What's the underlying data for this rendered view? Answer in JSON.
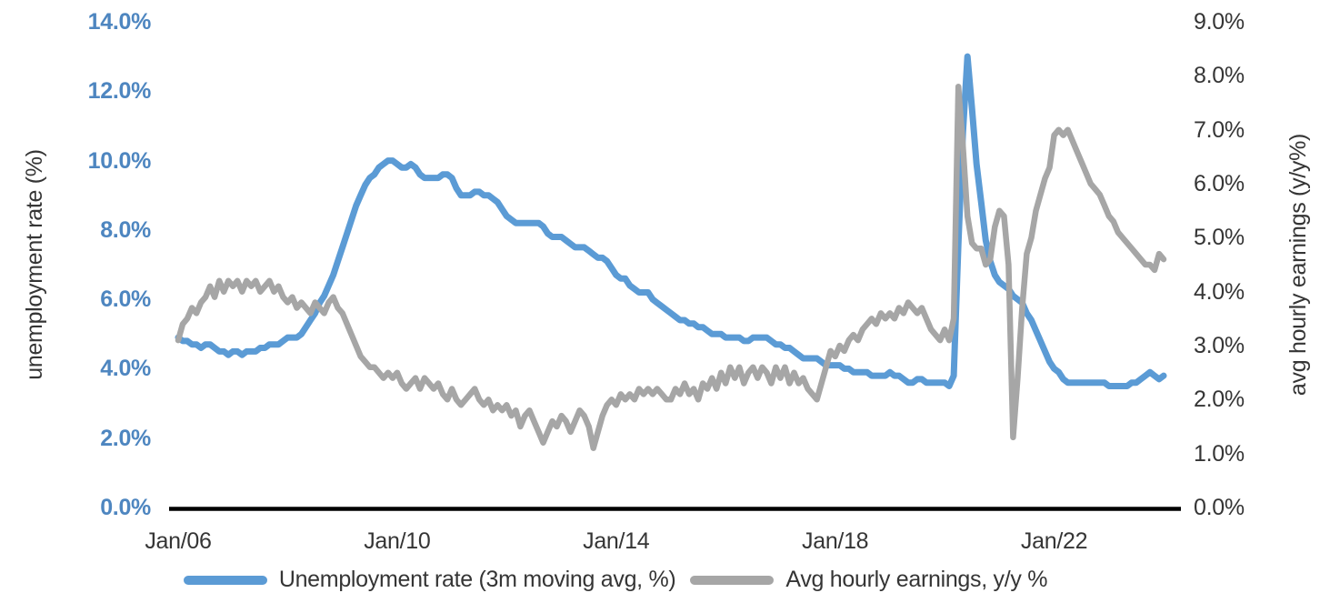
{
  "chart": {
    "left_axis": {
      "title": "unemployment rate (%)",
      "color": "#4e86c0",
      "tick_labels": [
        "0.0%",
        "2.0%",
        "4.0%",
        "6.0%",
        "8.0%",
        "10.0%",
        "12.0%",
        "14.0%"
      ]
    },
    "right_axis": {
      "title": "avg hourly earnings (y/y%)",
      "color": "#353535",
      "tick_labels": [
        "0.0%",
        "1.0%",
        "2.0%",
        "3.0%",
        "4.0%",
        "5.0%",
        "6.0%",
        "7.0%",
        "8.0%",
        "9.0%"
      ]
    },
    "x_axis": {
      "tick_labels": [
        "Jan/06",
        "Jan/10",
        "Jan/14",
        "Jan/18",
        "Jan/22"
      ],
      "tick_indices": [
        0,
        48,
        96,
        144,
        192
      ],
      "axis_line_color": "#000000"
    },
    "legend": [
      {
        "label": "Unemployment rate (3m moving avg, %)",
        "color": "#5b9bd5"
      },
      {
        "label": "Avg hourly earnings, y/y %",
        "color": "#a6a6a6"
      }
    ]
  },
  "chart_data": {
    "type": "line",
    "frequency": "monthly",
    "x_start": "Jan 2006",
    "x_end": "Jan 2024",
    "x_tick_labels": [
      "Jan/06",
      "Jan/10",
      "Jan/14",
      "Jan/18",
      "Jan/22"
    ],
    "left_ylim": [
      0,
      14
    ],
    "right_ylim": [
      0,
      9
    ],
    "grid": false,
    "legend_position": "bottom",
    "series": [
      {
        "name": "Unemployment rate (3m moving avg, %)",
        "axis": "left",
        "color": "#5b9bd5",
        "stroke_width": 7,
        "values": [
          4.9,
          4.8,
          4.8,
          4.7,
          4.7,
          4.6,
          4.7,
          4.7,
          4.6,
          4.5,
          4.5,
          4.4,
          4.5,
          4.5,
          4.4,
          4.5,
          4.5,
          4.5,
          4.6,
          4.6,
          4.7,
          4.7,
          4.7,
          4.8,
          4.9,
          4.9,
          4.9,
          5.0,
          5.2,
          5.4,
          5.6,
          5.9,
          6.1,
          6.4,
          6.7,
          7.1,
          7.5,
          7.9,
          8.3,
          8.7,
          9.0,
          9.3,
          9.5,
          9.6,
          9.8,
          9.9,
          10.0,
          10.0,
          9.9,
          9.8,
          9.8,
          9.9,
          9.8,
          9.6,
          9.5,
          9.5,
          9.5,
          9.5,
          9.6,
          9.6,
          9.5,
          9.2,
          9.0,
          9.0,
          9.0,
          9.1,
          9.1,
          9.0,
          9.0,
          8.9,
          8.8,
          8.6,
          8.4,
          8.3,
          8.2,
          8.2,
          8.2,
          8.2,
          8.2,
          8.2,
          8.1,
          7.9,
          7.8,
          7.8,
          7.8,
          7.7,
          7.6,
          7.5,
          7.5,
          7.5,
          7.4,
          7.3,
          7.2,
          7.2,
          7.1,
          6.9,
          6.7,
          6.6,
          6.6,
          6.4,
          6.3,
          6.2,
          6.2,
          6.2,
          6.0,
          5.9,
          5.8,
          5.7,
          5.6,
          5.5,
          5.4,
          5.4,
          5.3,
          5.3,
          5.2,
          5.2,
          5.1,
          5.0,
          5.0,
          5.0,
          4.9,
          4.9,
          4.9,
          4.9,
          4.8,
          4.8,
          4.9,
          4.9,
          4.9,
          4.9,
          4.8,
          4.7,
          4.7,
          4.6,
          4.6,
          4.5,
          4.4,
          4.3,
          4.3,
          4.3,
          4.3,
          4.2,
          4.1,
          4.1,
          4.1,
          4.1,
          4.0,
          4.0,
          3.9,
          3.9,
          3.9,
          3.9,
          3.8,
          3.8,
          3.8,
          3.8,
          3.9,
          3.8,
          3.8,
          3.7,
          3.6,
          3.6,
          3.7,
          3.7,
          3.6,
          3.6,
          3.6,
          3.6,
          3.6,
          3.5,
          3.8,
          7.6,
          10.8,
          13.0,
          11.5,
          9.9,
          8.8,
          7.7,
          7.1,
          6.7,
          6.5,
          6.4,
          6.3,
          6.1,
          6.0,
          5.9,
          5.6,
          5.4,
          5.1,
          4.8,
          4.5,
          4.2,
          4.0,
          3.9,
          3.7,
          3.6,
          3.6,
          3.6,
          3.6,
          3.6,
          3.6,
          3.6,
          3.6,
          3.6,
          3.5,
          3.5,
          3.5,
          3.5,
          3.5,
          3.6,
          3.6,
          3.7,
          3.8,
          3.9,
          3.8,
          3.7,
          3.8
        ]
      },
      {
        "name": "Avg hourly earnings, y/y %",
        "axis": "right",
        "color": "#a6a6a6",
        "stroke_width": 6.5,
        "values": [
          3.1,
          3.4,
          3.5,
          3.7,
          3.6,
          3.8,
          3.9,
          4.1,
          3.9,
          4.2,
          4.0,
          4.2,
          4.1,
          4.2,
          4.0,
          4.2,
          4.1,
          4.2,
          4.0,
          4.1,
          4.2,
          4.0,
          4.1,
          3.9,
          3.8,
          3.9,
          3.7,
          3.8,
          3.7,
          3.6,
          3.8,
          3.7,
          3.6,
          3.8,
          3.9,
          3.7,
          3.6,
          3.4,
          3.2,
          3.0,
          2.8,
          2.7,
          2.6,
          2.6,
          2.5,
          2.4,
          2.5,
          2.4,
          2.5,
          2.3,
          2.2,
          2.3,
          2.4,
          2.2,
          2.4,
          2.3,
          2.2,
          2.3,
          2.1,
          2.0,
          2.2,
          2.0,
          1.9,
          2.0,
          2.1,
          2.2,
          2.0,
          1.9,
          2.0,
          1.8,
          1.9,
          1.8,
          1.9,
          1.7,
          1.8,
          1.5,
          1.7,
          1.8,
          1.6,
          1.4,
          1.2,
          1.4,
          1.6,
          1.5,
          1.7,
          1.6,
          1.4,
          1.6,
          1.8,
          1.7,
          1.5,
          1.1,
          1.4,
          1.7,
          1.9,
          2.0,
          1.9,
          2.1,
          2.0,
          2.1,
          2.0,
          2.2,
          2.1,
          2.2,
          2.1,
          2.2,
          2.1,
          2.0,
          2.0,
          2.2,
          2.1,
          2.3,
          2.1,
          2.2,
          2.0,
          2.3,
          2.2,
          2.4,
          2.2,
          2.5,
          2.3,
          2.6,
          2.4,
          2.6,
          2.3,
          2.5,
          2.6,
          2.4,
          2.6,
          2.5,
          2.3,
          2.6,
          2.4,
          2.6,
          2.3,
          2.5,
          2.3,
          2.4,
          2.2,
          2.1,
          2.0,
          2.3,
          2.6,
          2.9,
          2.8,
          3.0,
          2.9,
          3.1,
          3.2,
          3.1,
          3.3,
          3.4,
          3.5,
          3.4,
          3.6,
          3.5,
          3.6,
          3.5,
          3.7,
          3.6,
          3.8,
          3.7,
          3.6,
          3.7,
          3.5,
          3.3,
          3.2,
          3.1,
          3.3,
          3.1,
          3.5,
          7.8,
          6.7,
          5.4,
          4.9,
          4.8,
          4.8,
          4.5,
          4.6,
          5.2,
          5.5,
          5.4,
          4.5,
          1.3,
          2.4,
          3.7,
          4.7,
          5.0,
          5.5,
          5.8,
          6.1,
          6.3,
          6.9,
          7.0,
          6.9,
          7.0,
          6.8,
          6.6,
          6.4,
          6.2,
          6.0,
          5.9,
          5.8,
          5.6,
          5.4,
          5.3,
          5.1,
          5.0,
          4.9,
          4.8,
          4.7,
          4.6,
          4.5,
          4.5,
          4.4,
          4.7,
          4.6
        ]
      }
    ]
  }
}
